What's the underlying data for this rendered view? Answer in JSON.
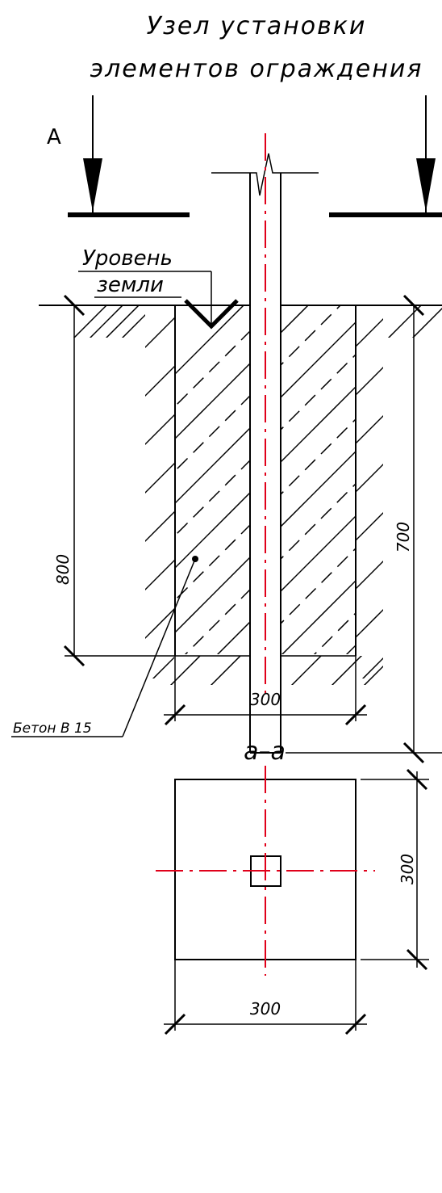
{
  "title": {
    "line1": "Узел установки",
    "line2": "элементов ограждения"
  },
  "section_mark": "A",
  "ground_label": {
    "line1": "Уровень",
    "line2": "земли"
  },
  "concrete_label": "Бетон В 15",
  "dimensions": {
    "depth": "800",
    "post_depth": "700",
    "width_elevation": "300",
    "width_plan": "300",
    "height_plan": "300"
  },
  "section_title": "а–а",
  "colors": {
    "lines": "#000000",
    "axis": "#e0001a"
  }
}
